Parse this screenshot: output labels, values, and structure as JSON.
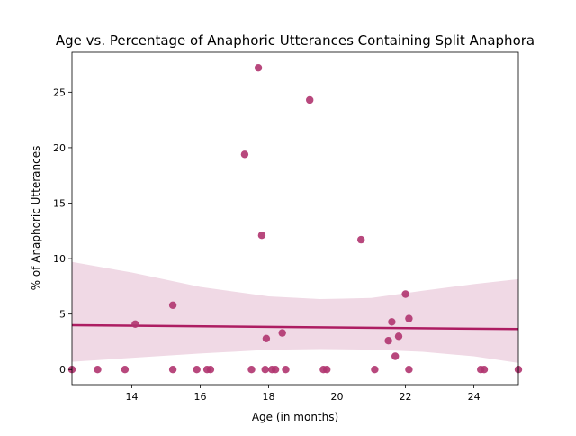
{
  "chart_data": {
    "type": "scatter",
    "title": "Age vs. Percentage of Anaphoric Utterances Containing Split Anaphora",
    "xlabel": "Age (in months)",
    "ylabel": "% of Anaphoric Utterances",
    "xlim": [
      12.25,
      25.3
    ],
    "ylim": [
      -1.36,
      28.6
    ],
    "x_ticks": [
      14,
      16,
      18,
      20,
      22,
      24
    ],
    "y_ticks": [
      0,
      5,
      10,
      15,
      20,
      25
    ],
    "grid": false,
    "point_color": "#b0346f",
    "line_color": "#ad1d62",
    "band_color": "#f0d9e5",
    "points": [
      {
        "x": 12.25,
        "y": 0
      },
      {
        "x": 13.0,
        "y": 0
      },
      {
        "x": 13.8,
        "y": 0
      },
      {
        "x": 14.1,
        "y": 4.1
      },
      {
        "x": 15.2,
        "y": 0
      },
      {
        "x": 15.2,
        "y": 5.8
      },
      {
        "x": 15.9,
        "y": 0
      },
      {
        "x": 16.2,
        "y": 0
      },
      {
        "x": 16.3,
        "y": 0
      },
      {
        "x": 17.3,
        "y": 19.4
      },
      {
        "x": 17.5,
        "y": 0
      },
      {
        "x": 17.7,
        "y": 27.2
      },
      {
        "x": 17.8,
        "y": 12.1
      },
      {
        "x": 17.9,
        "y": 0
      },
      {
        "x": 17.93,
        "y": 2.8
      },
      {
        "x": 18.1,
        "y": 0
      },
      {
        "x": 18.2,
        "y": 0
      },
      {
        "x": 18.4,
        "y": 3.3
      },
      {
        "x": 18.5,
        "y": 0
      },
      {
        "x": 19.2,
        "y": 24.3
      },
      {
        "x": 19.6,
        "y": 0
      },
      {
        "x": 19.7,
        "y": 0
      },
      {
        "x": 20.7,
        "y": 11.7
      },
      {
        "x": 21.1,
        "y": 0
      },
      {
        "x": 21.5,
        "y": 2.6
      },
      {
        "x": 21.6,
        "y": 4.3
      },
      {
        "x": 21.7,
        "y": 1.2
      },
      {
        "x": 21.8,
        "y": 3.0
      },
      {
        "x": 22.0,
        "y": 6.8
      },
      {
        "x": 22.1,
        "y": 4.6
      },
      {
        "x": 22.1,
        "y": 0
      },
      {
        "x": 24.2,
        "y": 0
      },
      {
        "x": 24.3,
        "y": 0
      },
      {
        "x": 25.3,
        "y": 0
      }
    ],
    "regression_line": [
      {
        "x": 12.25,
        "y": 4.0
      },
      {
        "x": 25.3,
        "y": 3.65
      }
    ],
    "confidence_band": [
      {
        "x": 12.25,
        "lower": 0.7,
        "upper": 9.7
      },
      {
        "x": 14.0,
        "lower": 1.05,
        "upper": 8.75
      },
      {
        "x": 16.0,
        "lower": 1.45,
        "upper": 7.45
      },
      {
        "x": 18.0,
        "lower": 1.78,
        "upper": 6.6
      },
      {
        "x": 19.5,
        "lower": 1.85,
        "upper": 6.35
      },
      {
        "x": 21.0,
        "lower": 1.8,
        "upper": 6.45
      },
      {
        "x": 22.5,
        "lower": 1.6,
        "upper": 7.1
      },
      {
        "x": 24.0,
        "lower": 1.2,
        "upper": 7.7
      },
      {
        "x": 25.3,
        "lower": 0.6,
        "upper": 8.15
      }
    ]
  }
}
